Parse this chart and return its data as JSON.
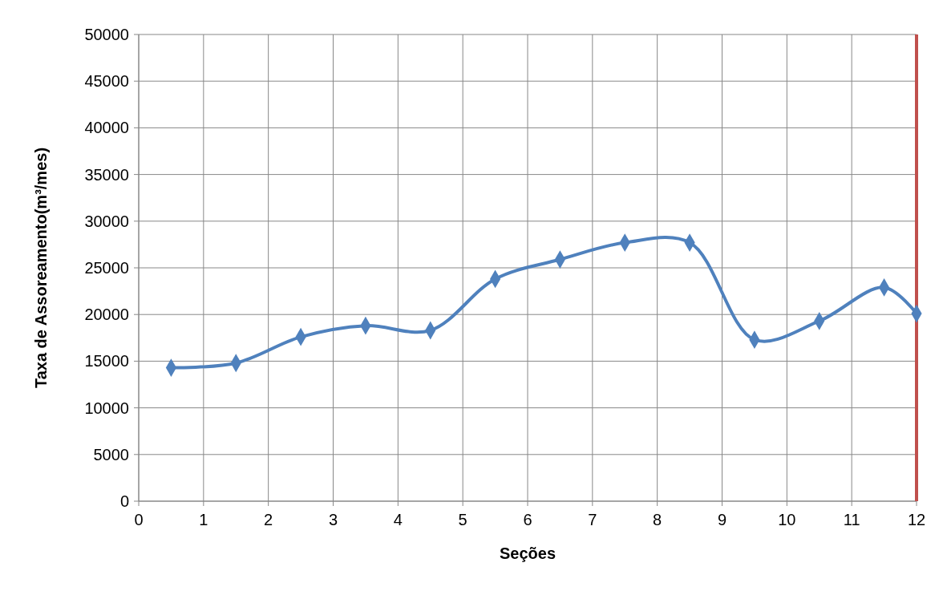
{
  "chart_data": {
    "type": "line",
    "xlabel": "Seções",
    "ylabel": "Taxa de Assoreamento(m³/mes)",
    "x": [
      0.5,
      1.5,
      2.5,
      3.5,
      4.5,
      5.5,
      6.5,
      7.5,
      8.5,
      9.5,
      10.5,
      11.5,
      12
    ],
    "series": [
      {
        "color": "#4f81bd",
        "values": [
          14300,
          14800,
          17600,
          18800,
          18300,
          23800,
          25900,
          27700,
          27700,
          17300,
          19300,
          22900,
          20100
        ]
      }
    ],
    "xlim": [
      0,
      12
    ],
    "xticks": [
      0,
      1,
      2,
      3,
      4,
      5,
      6,
      7,
      8,
      9,
      10,
      11,
      12
    ],
    "ylim": [
      0,
      50000
    ],
    "yticks": [
      0,
      5000,
      10000,
      15000,
      20000,
      25000,
      30000,
      35000,
      40000,
      45000,
      50000
    ],
    "grid": true,
    "marker": "diamond",
    "line_style": "solid",
    "ref_lines": [
      {
        "axis": "x",
        "value": 12,
        "color": "#c0504d"
      }
    ]
  }
}
